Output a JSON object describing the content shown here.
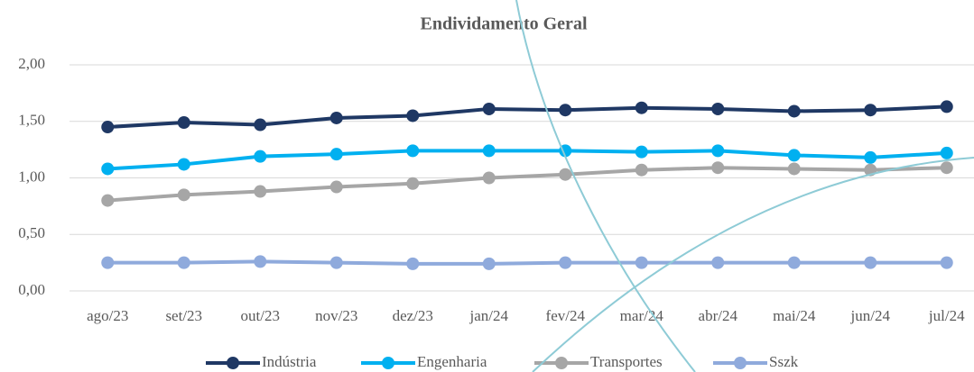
{
  "chart_data": {
    "type": "line",
    "title": "Endividamento Geral",
    "categories": [
      "ago/23",
      "set/23",
      "out/23",
      "nov/23",
      "dez/23",
      "jan/24",
      "fev/24",
      "mar/24",
      "abr/24",
      "mai/24",
      "jun/24",
      "jul/24"
    ],
    "series": [
      {
        "name": "Indústria",
        "color": "#1f3864",
        "values": [
          1.45,
          1.49,
          1.47,
          1.53,
          1.55,
          1.61,
          1.6,
          1.62,
          1.61,
          1.59,
          1.6,
          1.63
        ]
      },
      {
        "name": "Engenharia",
        "color": "#00b0f0",
        "values": [
          1.08,
          1.12,
          1.19,
          1.21,
          1.24,
          1.24,
          1.24,
          1.23,
          1.24,
          1.2,
          1.18,
          1.22
        ]
      },
      {
        "name": "Transportes",
        "color": "#a6a6a6",
        "values": [
          0.8,
          0.85,
          0.88,
          0.92,
          0.95,
          1.0,
          1.03,
          1.07,
          1.09,
          1.08,
          1.07,
          1.09
        ]
      },
      {
        "name": "Sszk",
        "color": "#8faadc",
        "values": [
          0.25,
          0.25,
          0.26,
          0.25,
          0.24,
          0.24,
          0.25,
          0.25,
          0.25,
          0.25,
          0.25,
          0.25
        ]
      }
    ],
    "ylim": [
      0,
      2
    ],
    "yticks": [
      {
        "value": 0,
        "label": "0,00"
      },
      {
        "value": 0.5,
        "label": "0,50"
      },
      {
        "value": 1,
        "label": "1,00"
      },
      {
        "value": 1.5,
        "label": "1,50"
      },
      {
        "value": 2,
        "label": "2,00"
      }
    ],
    "grid": true,
    "legend": "bottom"
  }
}
